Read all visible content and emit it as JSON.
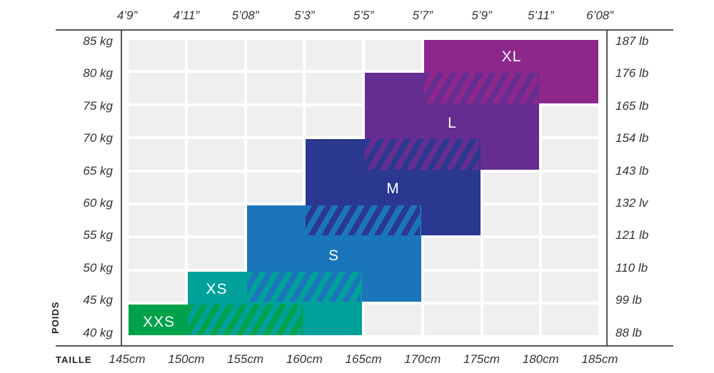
{
  "chart_data": {
    "type": "table",
    "title": "",
    "xlabel": "TAILLE",
    "ylabel": "POIDS",
    "x_ticks_cm": [
      "145cm",
      "150cm",
      "155cm",
      "160cm",
      "165cm",
      "170cm",
      "175cm",
      "180cm",
      "185cm"
    ],
    "x_ticks_ft": [
      "4’9”",
      "4’11”",
      "5’08”",
      "5’3”",
      "5’5”",
      "5’7”",
      "5’9”",
      "5’11”",
      "6’08”"
    ],
    "y_ticks_kg": [
      "85 kg",
      "80 kg",
      "75 kg",
      "70 kg",
      "65 kg",
      "60 kg",
      "55 kg",
      "50 kg",
      "45 kg",
      "40 kg"
    ],
    "y_ticks_lb": [
      "187 lb",
      "176 lb",
      "165 lb",
      "154 lb",
      "143 lb",
      "132 lv",
      "121 lb",
      "110 lb",
      "99 lb",
      "88 lb"
    ],
    "sizes": [
      {
        "label": "XXS",
        "height_cm": [
          145,
          160
        ],
        "weight_kg": [
          40,
          45
        ],
        "color": "#00a14b"
      },
      {
        "label": "XS",
        "height_cm": [
          150,
          165
        ],
        "weight_kg": [
          40,
          50
        ],
        "color": "#00a19a"
      },
      {
        "label": "S",
        "height_cm": [
          155,
          170
        ],
        "weight_kg": [
          45,
          60
        ],
        "color": "#1b75bb"
      },
      {
        "label": "M",
        "height_cm": [
          160,
          175
        ],
        "weight_kg": [
          55,
          70
        ],
        "color": "#2b388f"
      },
      {
        "label": "L",
        "height_cm": [
          165,
          180
        ],
        "weight_kg": [
          65,
          80
        ],
        "color": "#662d91"
      },
      {
        "label": "XL",
        "height_cm": [
          170,
          185
        ],
        "weight_kg": [
          75,
          85
        ],
        "color": "#8e278c"
      }
    ]
  }
}
